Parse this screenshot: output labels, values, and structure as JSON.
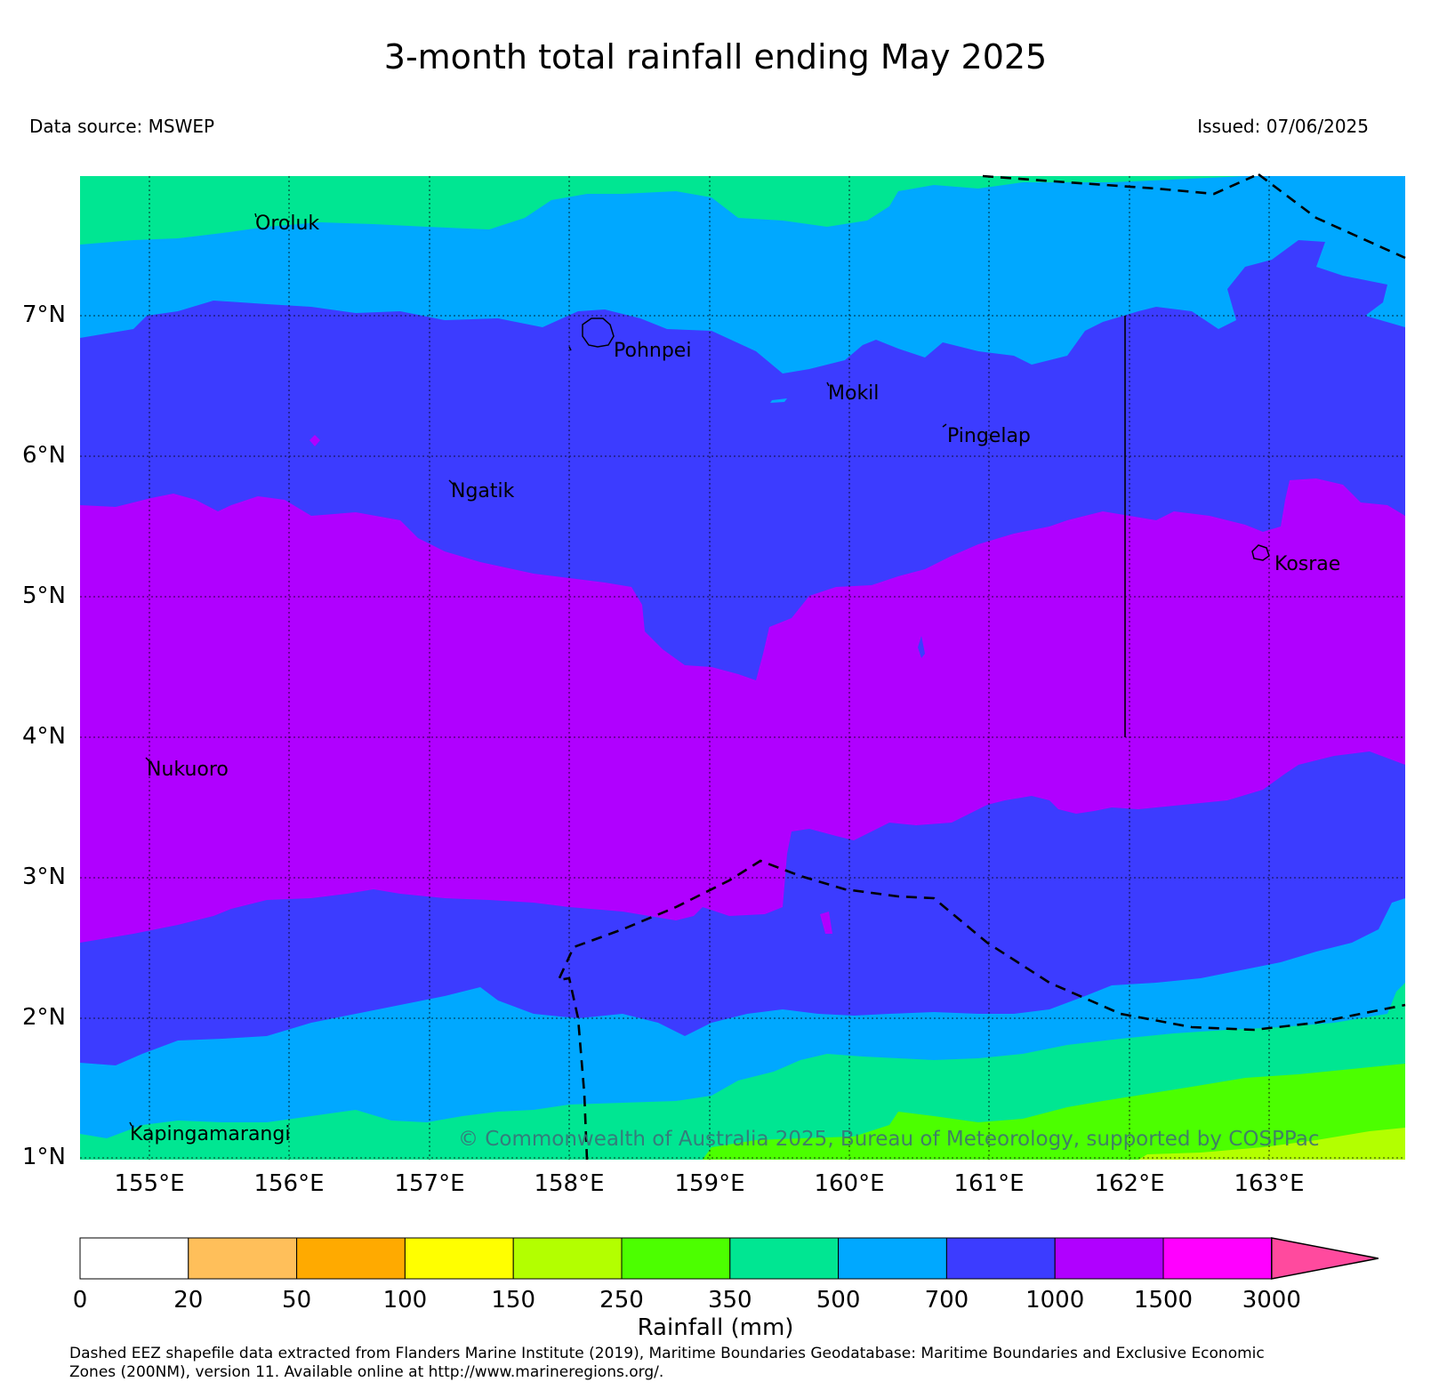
{
  "title": "3-month total rainfall ending May 2025",
  "data_source": "Data source: MSWEP",
  "issued": "Issued: 07/06/2025",
  "lat_labels": [
    "7°N",
    "6°N",
    "5°N",
    "4°N",
    "3°N",
    "2°N",
    "1°N"
  ],
  "lon_labels": [
    "155°E",
    "156°E",
    "157°E",
    "158°E",
    "159°E",
    "160°E",
    "161°E",
    "162°E",
    "163°E"
  ],
  "places": {
    "oroluk": "Oroluk",
    "pohnpei": "Pohnpei",
    "mokil": "Mokil",
    "pingelap": "Pingelap",
    "ngatik": "Ngatik",
    "kosrae": "Kosrae",
    "nukuoro": "Nukuoro",
    "kapingamarangi": "Kapingamarangi"
  },
  "copyright": "© Commonwealth of Australia 2025, Bureau of Meteorology, supported by COSPPac",
  "colorbar": {
    "title": "Rainfall (mm)",
    "ticks": [
      "0",
      "20",
      "50",
      "100",
      "150",
      "250",
      "350",
      "500",
      "700",
      "1000",
      "1500",
      "3000"
    ],
    "colors": [
      "#ffffff",
      "#ffbf5a",
      "#ffaa00",
      "#ffff00",
      "#b3ff00",
      "#4cff00",
      "#00e692",
      "#00a8ff",
      "#3c3cff",
      "#b000ff",
      "#ff00ff",
      "#ff4a9e"
    ]
  },
  "footnote_line1": "Dashed EEZ shapefile data extracted from Flanders Marine Institute (2019), Maritime Boundaries Geodatabase: Maritime Boundaries and Exclusive Economic",
  "footnote_line2": "Zones (200NM), version 11. Available online at http://www.marineregions.org/."
}
